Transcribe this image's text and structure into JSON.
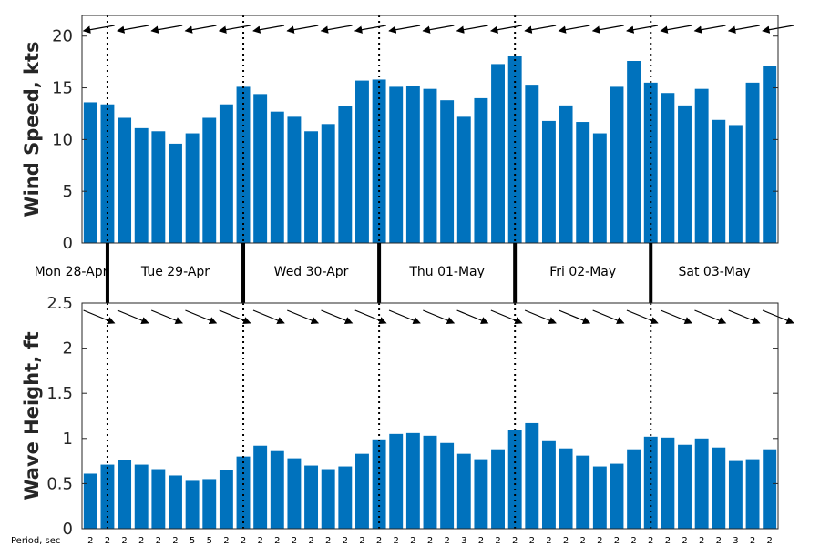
{
  "chart_data": [
    {
      "type": "bar",
      "ylabel": "Wind Speed, kts",
      "ylim": [
        0,
        22
      ],
      "yticks": [
        "0",
        "5",
        "10",
        "15",
        "20"
      ],
      "bar_color": "#0072BD",
      "values": [
        13.6,
        13.4,
        12.1,
        11.1,
        10.8,
        9.6,
        10.6,
        12.1,
        13.4,
        15.1,
        14.4,
        12.7,
        12.2,
        10.8,
        11.5,
        13.2,
        15.7,
        15.8,
        15.1,
        15.2,
        14.9,
        13.8,
        12.2,
        14.0,
        17.3,
        18.1,
        15.3,
        11.8,
        13.3,
        11.7,
        10.6,
        15.1,
        17.6,
        15.5,
        14.5,
        13.3,
        14.9,
        11.9,
        11.4,
        15.5,
        17.1
      ],
      "direction_arrows": "wind direction arrows, pointing roughly west (slightly upward left)"
    },
    {
      "type": "bar",
      "ylabel": "Wave Height, ft",
      "ylim": [
        0,
        2.5
      ],
      "yticks": [
        "0",
        "0.5",
        "1",
        "1.5",
        "2",
        "2.5"
      ],
      "bar_color": "#0072BD",
      "values": [
        0.61,
        0.71,
        0.76,
        0.71,
        0.66,
        0.59,
        0.53,
        0.55,
        0.65,
        0.8,
        0.92,
        0.86,
        0.78,
        0.7,
        0.66,
        0.69,
        0.83,
        0.99,
        1.05,
        1.06,
        1.03,
        0.95,
        0.83,
        0.77,
        0.88,
        1.09,
        1.17,
        0.97,
        0.89,
        0.81,
        0.69,
        0.72,
        0.88,
        1.02,
        1.01,
        0.93,
        1.0,
        0.9,
        0.75,
        0.77,
        0.88
      ],
      "period_label": "Period, sec",
      "periods": [
        "2",
        "2",
        "2",
        "2",
        "2",
        "2",
        "5",
        "5",
        "2",
        "2",
        "2",
        "2",
        "2",
        "2",
        "2",
        "2",
        "2",
        "2",
        "2",
        "2",
        "2",
        "2",
        "3",
        "2",
        "2",
        "2",
        "2",
        "2",
        "2",
        "2",
        "2",
        "2",
        "2",
        "2",
        "2",
        "2",
        "2",
        "2",
        "3",
        "2",
        "2"
      ],
      "direction_arrows": "wave direction arrows, pointing south-east (downward right)"
    }
  ],
  "days": [
    "Mon 28-Apr",
    "Tue 29-Apr",
    "Wed 30-Apr",
    "Thu 01-May",
    "Fri 02-May",
    "Sat 03-May"
  ],
  "day_start_index": [
    2,
    10,
    18,
    26,
    34
  ]
}
